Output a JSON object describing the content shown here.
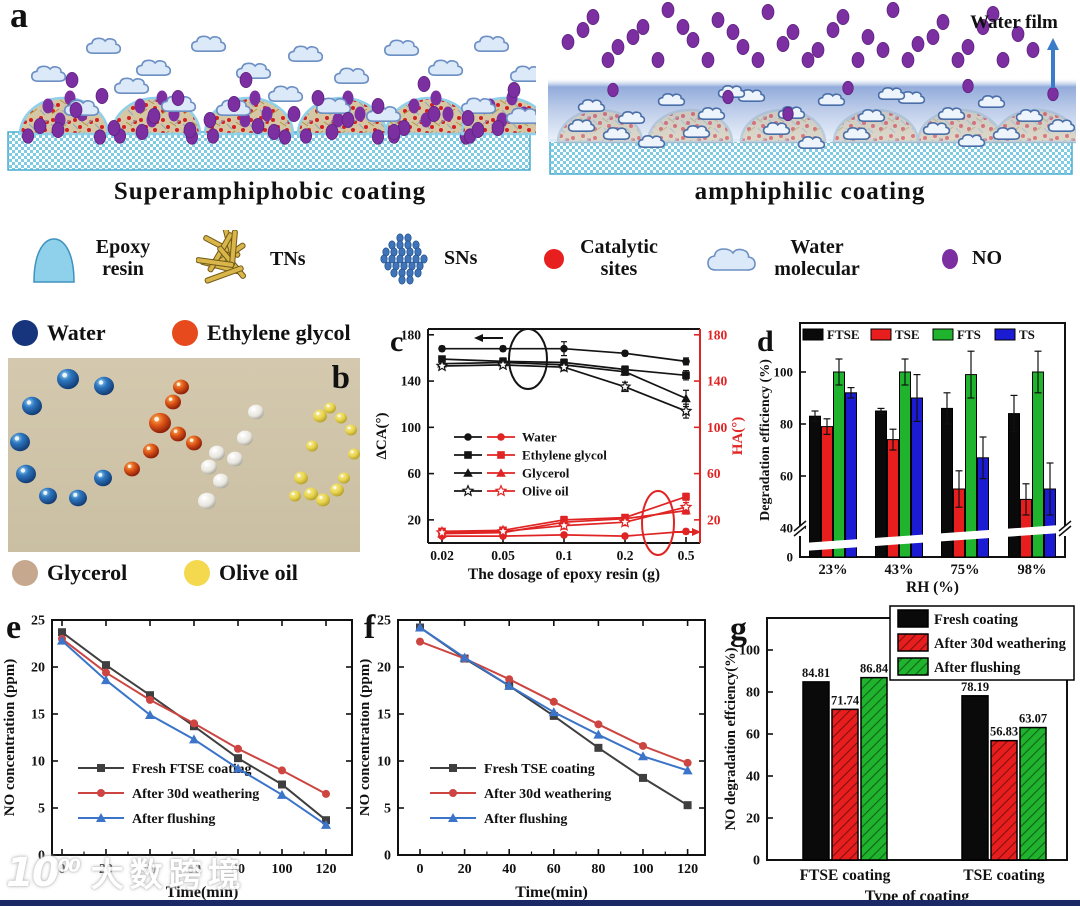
{
  "panel_a": {
    "letter": "a",
    "left_title": "Superamphiphobic  coating",
    "right_title": "amphiphilic coating",
    "water_film_label": "Water film",
    "legend": [
      {
        "name": "epoxy-resin",
        "label": "Epoxy resin",
        "color": "#8fd0ea"
      },
      {
        "name": "tns",
        "label": "TNs",
        "color": "#d9b54a"
      },
      {
        "name": "sns",
        "label": "SNs",
        "color": "#3f74b8"
      },
      {
        "name": "catalytic-sites",
        "label": "Catalytic sites",
        "color": "#e81f1f"
      },
      {
        "name": "water-molecular",
        "label": "Water molecular",
        "color": "#dce9f8"
      },
      {
        "name": "no",
        "label": "NO",
        "color": "#7b2fa0"
      }
    ]
  },
  "panel_b": {
    "letter": "b",
    "labels": [
      {
        "label": "Water",
        "color": "#17357c"
      },
      {
        "label": "Ethylene glycol",
        "color": "#e64a1d"
      },
      {
        "label": "Glycerol",
        "color": "#c5a88e"
      },
      {
        "label": "Olive oil",
        "color": "#f4d94e"
      }
    ]
  },
  "chart_data": [
    {
      "id": "c",
      "panel_letter": "c",
      "type": "line",
      "dual_axis": true,
      "xlabel": "The dosage of epoxy resin (g)",
      "ylabel_left": "ΔCA(°)",
      "ylabel_right": "HA(°)",
      "categories": [
        "0.02",
        "0.05",
        "0.1",
        "0.2",
        "0.5"
      ],
      "ylim": [
        0,
        185
      ],
      "yticks": [
        20,
        60,
        100,
        140,
        180
      ],
      "axis_color_left": "#141414",
      "axis_color_right": "#e02424",
      "legend": [
        "Water",
        "Ethylene glycol",
        "Glycerol",
        "Olive oil"
      ],
      "markers": [
        "circle",
        "square",
        "triangle",
        "star"
      ],
      "series_left": [
        {
          "name": "Water",
          "values": [
            168,
            168,
            168,
            164,
            157
          ],
          "errors": [
            2,
            2,
            6,
            2,
            3
          ]
        },
        {
          "name": "Ethylene glycol",
          "values": [
            159,
            157,
            156,
            150,
            145
          ],
          "errors": [
            2,
            3,
            3,
            3,
            4
          ]
        },
        {
          "name": "Glycerol",
          "values": [
            155,
            156,
            154,
            148,
            125
          ],
          "errors": [
            3,
            2,
            3,
            3,
            7
          ]
        },
        {
          "name": "Olive oil",
          "values": [
            153,
            154,
            152,
            135,
            114
          ],
          "errors": [
            2,
            2,
            3,
            4,
            6
          ]
        }
      ],
      "series_right": [
        {
          "name": "Water",
          "values": [
            6,
            6,
            7,
            6,
            10
          ],
          "errors": [
            1,
            1,
            1,
            1,
            2
          ]
        },
        {
          "name": "Ethylene glycol",
          "values": [
            10,
            11,
            20,
            22,
            40
          ],
          "errors": [
            2,
            2,
            3,
            2,
            3
          ]
        },
        {
          "name": "Glycerol",
          "values": [
            8,
            9,
            18,
            21,
            28
          ],
          "errors": [
            1,
            2,
            3,
            2,
            3
          ]
        },
        {
          "name": "Olive oil",
          "values": [
            9,
            10,
            15,
            18,
            31
          ],
          "errors": [
            2,
            2,
            3,
            3,
            4
          ]
        }
      ]
    },
    {
      "id": "d",
      "panel_letter": "d",
      "type": "bar",
      "xlabel": "RH (%)",
      "ylabel": "Degradation efficiency (%)",
      "categories": [
        "23%",
        "43%",
        "75%",
        "98%"
      ],
      "yticks": [
        0,
        40,
        60,
        80,
        100
      ],
      "axis_break": [
        0,
        40
      ],
      "series": [
        {
          "name": "FTSE",
          "color": "#0a0a0a",
          "values": [
            83,
            85,
            86,
            84
          ],
          "errors": [
            2,
            1,
            6,
            7
          ]
        },
        {
          "name": "TSE",
          "color": "#e81e1e",
          "values": [
            79,
            74,
            55,
            51
          ],
          "errors": [
            3,
            4,
            7,
            6
          ]
        },
        {
          "name": "FTS",
          "color": "#1fb32e",
          "values": [
            100,
            100,
            99,
            100
          ],
          "errors": [
            5,
            5,
            9,
            8
          ]
        },
        {
          "name": "TS",
          "color": "#1b1bd4",
          "values": [
            92,
            90,
            67,
            55
          ],
          "errors": [
            2,
            9,
            8,
            10
          ]
        }
      ]
    },
    {
      "id": "e",
      "panel_letter": "e",
      "type": "line",
      "xlabel": "Time(min)",
      "ylabel": "NO concentration (ppm)",
      "x": [
        0,
        20,
        40,
        60,
        80,
        100,
        120
      ],
      "ylim": [
        0,
        25
      ],
      "yticks": [
        0,
        5,
        10,
        15,
        20,
        25
      ],
      "series": [
        {
          "name": "Fresh FTSE coating",
          "color": "#3f3f3f",
          "marker": "square",
          "values": [
            23.7,
            20.2,
            17.0,
            13.7,
            10.3,
            7.5,
            3.7
          ]
        },
        {
          "name": "After 30d weathering",
          "color": "#cc4541",
          "marker": "circle",
          "values": [
            23.0,
            19.4,
            16.5,
            14.0,
            11.3,
            9.0,
            6.5
          ]
        },
        {
          "name": "After flushing",
          "color": "#3b74c8",
          "marker": "triangle",
          "values": [
            22.8,
            18.6,
            14.9,
            12.3,
            9.2,
            6.4,
            3.2
          ]
        }
      ]
    },
    {
      "id": "f",
      "panel_letter": "f",
      "type": "line",
      "xlabel": "Time(min)",
      "ylabel": "NO concentration (ppm)",
      "x": [
        0,
        20,
        40,
        60,
        80,
        100,
        120
      ],
      "ylim": [
        0,
        25
      ],
      "yticks": [
        0,
        5,
        10,
        15,
        20,
        25
      ],
      "series": [
        {
          "name": "Fresh TSE coating",
          "color": "#3f3f3f",
          "marker": "square",
          "values": [
            24.2,
            20.9,
            18.0,
            14.8,
            11.4,
            8.2,
            5.3
          ]
        },
        {
          "name": "After 30d weathering",
          "color": "#cc4541",
          "marker": "circle",
          "values": [
            22.7,
            20.9,
            18.7,
            16.3,
            13.9,
            11.6,
            9.8
          ]
        },
        {
          "name": "After flushing",
          "color": "#3b74c8",
          "marker": "triangle",
          "values": [
            24.2,
            21.0,
            18.0,
            15.2,
            12.8,
            10.5,
            9.0
          ]
        }
      ]
    },
    {
      "id": "g",
      "panel_letter": "g",
      "type": "bar",
      "xlabel": "Type of coating",
      "ylabel": "NO degradation effciency(%)",
      "categories": [
        "FTSE coating",
        "TSE coating"
      ],
      "yticks": [
        0,
        20,
        40,
        60,
        80,
        100
      ],
      "ylim": [
        0,
        112
      ],
      "series": [
        {
          "name": "Fresh coating",
          "color": "#0a0a0a",
          "hatch": false,
          "values": [
            84.81,
            78.19
          ]
        },
        {
          "name": "After 30d weathering",
          "color": "#e81e1e",
          "hatch": true,
          "values": [
            71.74,
            56.83
          ]
        },
        {
          "name": "After flushing",
          "color": "#1fb32e",
          "hatch": true,
          "values": [
            86.84,
            63.07
          ]
        }
      ]
    }
  ],
  "watermark": {
    "logo": "10",
    "logo_sup": "00",
    "text": "大数跨境"
  }
}
